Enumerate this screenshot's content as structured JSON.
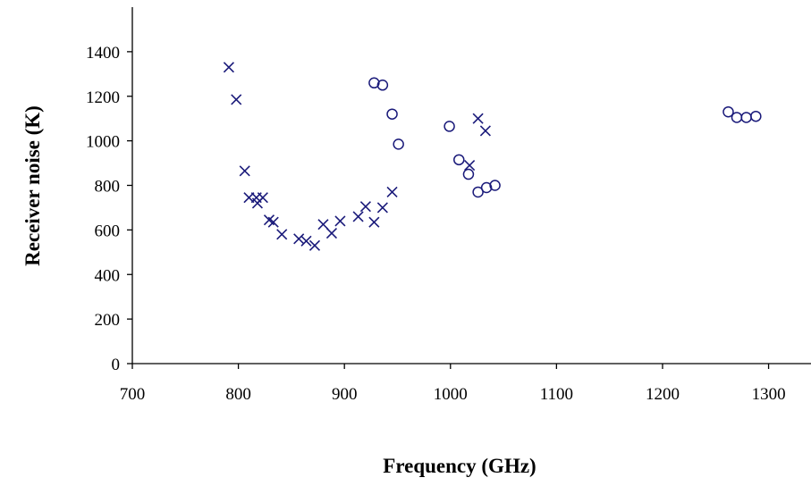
{
  "chart_data": {
    "type": "scatter",
    "title": "",
    "xlabel": "Frequency (GHz)",
    "ylabel": "Receiver noise (K)",
    "xlim": [
      700,
      1340
    ],
    "ylim": [
      0,
      1600
    ],
    "x_ticks": [
      700,
      800,
      900,
      1000,
      1100,
      1200,
      1300
    ],
    "y_ticks": [
      0,
      200,
      400,
      600,
      800,
      1000,
      1200,
      1400
    ],
    "grid": false,
    "legend": "none",
    "colors": {
      "marker": "#1a1a7a",
      "axis": "#000000"
    },
    "series": [
      {
        "marker": "x",
        "points": [
          [
            791,
            1330
          ],
          [
            798,
            1185
          ],
          [
            806,
            865
          ],
          [
            810,
            745
          ],
          [
            817,
            745
          ],
          [
            818,
            720
          ],
          [
            823,
            745
          ],
          [
            829,
            645
          ],
          [
            833,
            635
          ],
          [
            841,
            580
          ],
          [
            857,
            560
          ],
          [
            864,
            550
          ],
          [
            872,
            530
          ],
          [
            880,
            625
          ],
          [
            888,
            585
          ],
          [
            896,
            640
          ],
          [
            913,
            660
          ],
          [
            920,
            705
          ],
          [
            928,
            635
          ],
          [
            936,
            700
          ],
          [
            945,
            770
          ],
          [
            1018,
            890
          ],
          [
            1026,
            1100
          ],
          [
            1033,
            1045
          ]
        ]
      },
      {
        "marker": "o",
        "points": [
          [
            928,
            1260
          ],
          [
            936,
            1250
          ],
          [
            945,
            1120
          ],
          [
            951,
            985
          ],
          [
            999,
            1065
          ],
          [
            1008,
            915
          ],
          [
            1017,
            850
          ],
          [
            1026,
            770
          ],
          [
            1034,
            790
          ],
          [
            1042,
            800
          ],
          [
            1262,
            1130
          ],
          [
            1270,
            1105
          ],
          [
            1279,
            1105
          ],
          [
            1288,
            1110
          ]
        ]
      }
    ]
  }
}
